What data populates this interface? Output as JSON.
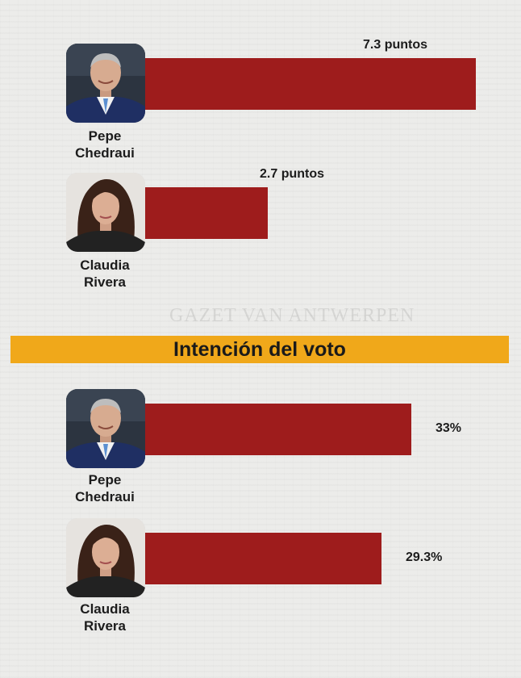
{
  "banner": {
    "title": "Intención del voto"
  },
  "watermark": "GAZET VAN ANTWERPEN",
  "colors": {
    "bar": "#9e1c1c",
    "banner": "#f0a81a",
    "background": "#ececea"
  },
  "chart_data": [
    {
      "type": "bar",
      "orientation": "horizontal",
      "title": "",
      "categories": [
        "Pepe Chedraui",
        "Claudia Rivera"
      ],
      "values": [
        7.3,
        2.7
      ],
      "labels": [
        "7.3 puntos",
        "2.7 puntos"
      ],
      "unit": "puntos",
      "label_position": "above-bar-end",
      "xlim": [
        0,
        7.3
      ]
    },
    {
      "type": "bar",
      "orientation": "horizontal",
      "title": "Intención del voto",
      "categories": [
        "Pepe Chedraui",
        "Claudia Rivera"
      ],
      "values": [
        33,
        29.3
      ],
      "labels": [
        "33%",
        "29.3%"
      ],
      "unit": "%",
      "label_position": "right-of-bar",
      "xlim": [
        0,
        41
      ]
    }
  ],
  "candidates": [
    {
      "first": "Pepe",
      "last": "Chedraui",
      "photo": "man-portrait"
    },
    {
      "first": "Claudia",
      "last": "Rivera",
      "photo": "woman-portrait"
    }
  ]
}
